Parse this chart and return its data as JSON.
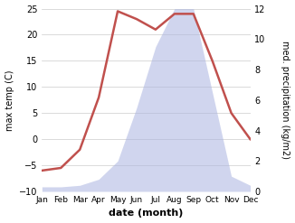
{
  "months": [
    1,
    2,
    3,
    4,
    5,
    6,
    7,
    8,
    9,
    10,
    11,
    12
  ],
  "month_labels": [
    "Jan",
    "Feb",
    "Mar",
    "Apr",
    "May",
    "Jun",
    "Jul",
    "Aug",
    "Sep",
    "Oct",
    "Nov",
    "Dec"
  ],
  "temp": [
    -6,
    -5.5,
    -2,
    8,
    24.5,
    23,
    21,
    24,
    24,
    15,
    5,
    0
  ],
  "precip": [
    0.3,
    0.3,
    0.4,
    0.8,
    2.0,
    5.5,
    9.5,
    12.0,
    12.0,
    6.5,
    1.0,
    0.4
  ],
  "temp_color": "#c0504d",
  "precip_fill_color": "#aab4e0",
  "precip_fill_alpha": 0.55,
  "temp_ylim": [
    -10,
    25
  ],
  "precip_ylim": [
    0,
    12
  ],
  "temp_yticks": [
    -10,
    -5,
    0,
    5,
    10,
    15,
    20,
    25
  ],
  "precip_yticks": [
    0,
    2,
    4,
    6,
    8,
    10,
    12
  ],
  "xlabel": "date (month)",
  "ylabel_left": "max temp (C)",
  "ylabel_right": "med. precipitation (kg/m2)",
  "bg_color": "#ffffff",
  "grid_color": "#cccccc"
}
